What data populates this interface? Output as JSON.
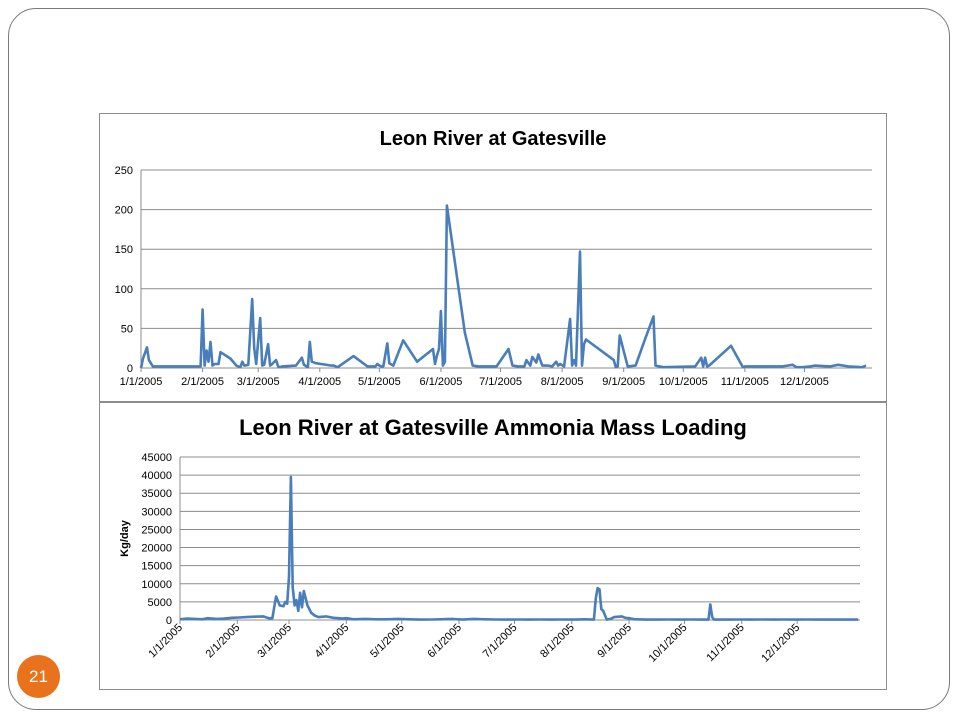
{
  "slide": {
    "page_number": "21"
  },
  "chart_data": [
    {
      "type": "line",
      "title": "Leon River at Gatesville",
      "xlabel": "",
      "ylabel": "",
      "ylim": [
        0,
        250
      ],
      "yticks": [
        "0",
        "50",
        "100",
        "150",
        "200",
        "250"
      ],
      "xlim": [
        "2005-01-01",
        "2006-01-04"
      ],
      "xtick_labels": [
        "1/1/2005",
        "2/1/2005",
        "3/1/2005",
        "4/1/2005",
        "5/1/2005",
        "6/1/2005",
        "7/1/2005",
        "8/1/2005",
        "9/1/2005",
        "10/1/2005",
        "11/1/2005",
        "12/1/2005"
      ],
      "xtick_dates": [
        "2005-01-01",
        "2005-02-01",
        "2005-03-01",
        "2005-04-01",
        "2005-05-01",
        "2005-06-01",
        "2005-07-01",
        "2005-08-01",
        "2005-09-01",
        "2005-10-01",
        "2005-11-01",
        "2005-12-01"
      ],
      "xtick_rotation": 0,
      "grid": "horizontal",
      "legend": "none",
      "color": "#4a7ebb",
      "series": [
        {
          "x": [
            "2005-01-01",
            "2005-01-02",
            "2005-01-04",
            "2005-01-05",
            "2005-01-07",
            "2005-01-31",
            "2005-02-01",
            "2005-02-02",
            "2005-02-03",
            "2005-02-04",
            "2005-02-05",
            "2005-02-06",
            "2005-02-07",
            "2005-02-09",
            "2005-02-10",
            "2005-02-15",
            "2005-02-18",
            "2005-02-20",
            "2005-02-21",
            "2005-02-22",
            "2005-02-24",
            "2005-02-26",
            "2005-02-27",
            "2005-02-28",
            "2005-03-02",
            "2005-03-03",
            "2005-03-04",
            "2005-03-06",
            "2005-03-07",
            "2005-03-08",
            "2005-03-10",
            "2005-03-11",
            "2005-03-12",
            "2005-03-13",
            "2005-03-20",
            "2005-03-23",
            "2005-03-24",
            "2005-03-26",
            "2005-03-27",
            "2005-03-28",
            "2005-03-30",
            "2005-04-07",
            "2005-04-08",
            "2005-04-10",
            "2005-04-18",
            "2005-04-25",
            "2005-04-29",
            "2005-04-30",
            "2005-05-01",
            "2005-05-02",
            "2005-05-03",
            "2005-05-05",
            "2005-05-06",
            "2005-05-08",
            "2005-05-13",
            "2005-05-20",
            "2005-05-28",
            "2005-05-29",
            "2005-05-30",
            "2005-05-31",
            "2005-06-01",
            "2005-06-02",
            "2005-06-03",
            "2005-06-04",
            "2005-06-13",
            "2005-06-17",
            "2005-06-20",
            "2005-06-29",
            "2005-07-05",
            "2005-07-07",
            "2005-07-10",
            "2005-07-13",
            "2005-07-14",
            "2005-07-16",
            "2005-07-17",
            "2005-07-19",
            "2005-07-20",
            "2005-07-22",
            "2005-07-25",
            "2005-07-27",
            "2005-07-29",
            "2005-07-30",
            "2005-07-31",
            "2005-08-02",
            "2005-08-05",
            "2005-08-06",
            "2005-08-07",
            "2005-08-08",
            "2005-08-10",
            "2005-08-11",
            "2005-08-12",
            "2005-08-13",
            "2005-08-27",
            "2005-08-28",
            "2005-08-29",
            "2005-08-30",
            "2005-09-03",
            "2005-09-07",
            "2005-09-12",
            "2005-09-16",
            "2005-09-17",
            "2005-09-21",
            "2005-10-07",
            "2005-10-10",
            "2005-10-11",
            "2005-10-12",
            "2005-10-13",
            "2005-10-14",
            "2005-10-25",
            "2005-10-31",
            "2005-11-01",
            "2005-11-20",
            "2005-11-25",
            "2005-11-27",
            "2005-11-30",
            "2005-12-04",
            "2005-12-06",
            "2005-12-14",
            "2005-12-18",
            "2005-12-23",
            "2005-12-30",
            "2006-01-01"
          ],
          "y": [
            0,
            12,
            26,
            10,
            2,
            2,
            74,
            3,
            22,
            8,
            33,
            3,
            5,
            5,
            20,
            12,
            3,
            1,
            8,
            3,
            4,
            87,
            25,
            5,
            63,
            3,
            4,
            30,
            3,
            5,
            10,
            2,
            1,
            2,
            3,
            13,
            4,
            1,
            33,
            8,
            6,
            3,
            3,
            1,
            15,
            2,
            2,
            5,
            3,
            2,
            2,
            31,
            6,
            3,
            35,
            8,
            24,
            5,
            16,
            24,
            72,
            3,
            8,
            205,
            45,
            3,
            2,
            2,
            24,
            3,
            2,
            2,
            10,
            3,
            14,
            7,
            17,
            3,
            3,
            2,
            8,
            3,
            5,
            2,
            62,
            3,
            10,
            3,
            147,
            3,
            30,
            36,
            10,
            1,
            2,
            41,
            2,
            3,
            38,
            65,
            3,
            1,
            2,
            13,
            2,
            13,
            2,
            3,
            28,
            1,
            2,
            2,
            4,
            1,
            1,
            2,
            3,
            2,
            4,
            2,
            1,
            3
          ]
        }
      ]
    },
    {
      "type": "line",
      "title": "Leon River at Gatesville Ammonia Mass Loading",
      "xlabel": "",
      "ylabel": "Kg/day",
      "ylim": [
        0,
        45000
      ],
      "yticks": [
        "0",
        "5000",
        "10000",
        "15000",
        "20000",
        "25000",
        "30000",
        "35000",
        "40000",
        "45000"
      ],
      "xlim": [
        "2005-01-01",
        "2006-01-04"
      ],
      "xtick_labels": [
        "1/1/2005",
        "2/1/2005",
        "3/1/2005",
        "4/1/2005",
        "5/1/2005",
        "6/1/2005",
        "7/1/2005",
        "8/1/2005",
        "9/1/2005",
        "10/1/2005",
        "11/1/2005",
        "12/1/2005"
      ],
      "xtick_dates": [
        "2005-01-01",
        "2005-02-01",
        "2005-03-01",
        "2005-04-01",
        "2005-05-01",
        "2005-06-01",
        "2005-07-01",
        "2005-08-01",
        "2005-09-01",
        "2005-10-01",
        "2005-11-01",
        "2005-12-01"
      ],
      "xtick_rotation": -45,
      "grid": "horizontal",
      "legend": "none",
      "color": "#4a7ebb",
      "series": [
        {
          "x": [
            "2005-01-01",
            "2005-01-05",
            "2005-01-09",
            "2005-01-13",
            "2005-01-16",
            "2005-01-21",
            "2005-01-25",
            "2005-01-29",
            "2005-02-02",
            "2005-02-06",
            "2005-02-10",
            "2005-02-15",
            "2005-02-18",
            "2005-02-20",
            "2005-02-21",
            "2005-02-22",
            "2005-02-24",
            "2005-02-26",
            "2005-02-27",
            "2005-02-28",
            "2005-03-01",
            "2005-03-02",
            "2005-03-03",
            "2005-03-04",
            "2005-03-05",
            "2005-03-06",
            "2005-03-07",
            "2005-03-08",
            "2005-03-09",
            "2005-03-11",
            "2005-03-13",
            "2005-03-15",
            "2005-03-17",
            "2005-03-21",
            "2005-03-25",
            "2005-03-28",
            "2005-03-30",
            "2005-04-01",
            "2005-04-05",
            "2005-04-11",
            "2005-04-17",
            "2005-04-23",
            "2005-04-29",
            "2005-05-05",
            "2005-05-11",
            "2005-05-17",
            "2005-05-22",
            "2005-05-28",
            "2005-06-03",
            "2005-06-09",
            "2005-06-15",
            "2005-06-21",
            "2005-06-27",
            "2005-07-03",
            "2005-07-09",
            "2005-07-15",
            "2005-07-21",
            "2005-07-27",
            "2005-08-02",
            "2005-08-08",
            "2005-08-13",
            "2005-08-14",
            "2005-08-15",
            "2005-08-16",
            "2005-08-17",
            "2005-08-18",
            "2005-08-20",
            "2005-08-22",
            "2005-08-24",
            "2005-08-28",
            "2005-08-30",
            "2005-09-01",
            "2005-09-04",
            "2005-09-10",
            "2005-09-16",
            "2005-09-22",
            "2005-09-28",
            "2005-10-04",
            "2005-10-10",
            "2005-10-14",
            "2005-10-15",
            "2005-10-16",
            "2005-10-17",
            "2005-10-19",
            "2005-10-25",
            "2005-10-31",
            "2005-11-06",
            "2005-11-12",
            "2005-11-18",
            "2005-11-24",
            "2005-11-30",
            "2005-12-06",
            "2005-12-12",
            "2005-12-18",
            "2005-12-24",
            "2005-12-30",
            "2006-01-03"
          ],
          "y": [
            200,
            400,
            300,
            200,
            500,
            300,
            400,
            600,
            700,
            800,
            900,
            1000,
            500,
            500,
            3500,
            6500,
            4000,
            3800,
            5000,
            4500,
            12000,
            39500,
            9000,
            4000,
            5500,
            2500,
            7500,
            3500,
            8000,
            4000,
            2000,
            1200,
            800,
            1000,
            600,
            500,
            400,
            500,
            200,
            300,
            200,
            200,
            300,
            200,
            100,
            150,
            200,
            300,
            100,
            300,
            200,
            150,
            100,
            150,
            100,
            150,
            100,
            150,
            100,
            200,
            100,
            6000,
            8800,
            8500,
            3000,
            2500,
            100,
            300,
            800,
            1000,
            600,
            500,
            200,
            100,
            100,
            150,
            100,
            150,
            100,
            100,
            4300,
            800,
            100,
            150,
            100,
            150,
            100,
            150,
            100,
            150,
            100,
            150,
            100,
            100,
            100,
            100,
            100
          ]
        }
      ]
    }
  ]
}
